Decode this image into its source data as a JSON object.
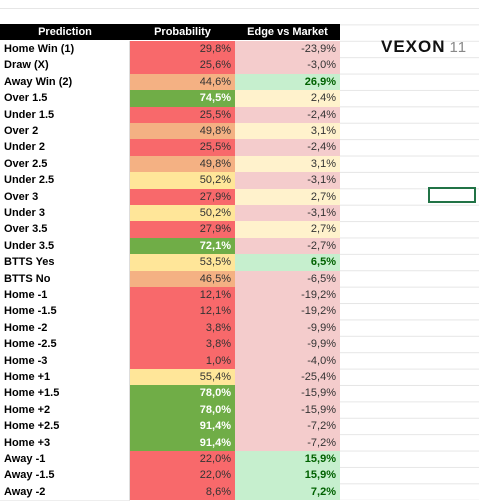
{
  "table": {
    "header": [
      "Prediction",
      "Probability",
      "Edge vs Market"
    ],
    "rows": [
      [
        "Home Win (1)",
        "29,8%",
        "-23,9%"
      ],
      [
        "Draw (X)",
        "25,6%",
        "-3,0%"
      ],
      [
        "Away Win (2)",
        "44,6%",
        "26,9%"
      ],
      [
        "Over 1.5",
        "74,5%",
        "2,4%"
      ],
      [
        "Under 1.5",
        "25,5%",
        "-2,4%"
      ],
      [
        "Over 2",
        "49,8%",
        "3,1%"
      ],
      [
        "Under 2",
        "25,5%",
        "-2,4%"
      ],
      [
        "Over 2.5",
        "49,8%",
        "3,1%"
      ],
      [
        "Under 2.5",
        "50,2%",
        "-3,1%"
      ],
      [
        "Over 3",
        "27,9%",
        "2,7%"
      ],
      [
        "Under 3",
        "50,2%",
        "-3,1%"
      ],
      [
        "Over 3.5",
        "27,9%",
        "2,7%"
      ],
      [
        "Under 3.5",
        "72,1%",
        "-2,7%"
      ],
      [
        "BTTS Yes",
        "53,5%",
        "6,5%"
      ],
      [
        "BTTS No",
        "46,5%",
        "-6,5%"
      ],
      [
        "Home -1",
        "12,1%",
        "-19,2%"
      ],
      [
        "Home -1.5",
        "12,1%",
        "-19,2%"
      ],
      [
        "Home -2",
        "3,8%",
        "-9,9%"
      ],
      [
        "Home -2.5",
        "3,8%",
        "-9,9%"
      ],
      [
        "Home -3",
        "1,0%",
        "-4,0%"
      ],
      [
        "Home +1",
        "55,4%",
        "-25,4%"
      ],
      [
        "Home +1.5",
        "78,0%",
        "-15,9%"
      ],
      [
        "Home +2",
        "78,0%",
        "-15,9%"
      ],
      [
        "Home +2.5",
        "91,4%",
        "-7,2%"
      ],
      [
        "Home +3",
        "91,4%",
        "-7,2%"
      ],
      [
        "Away -1",
        "22,0%",
        "15,9%"
      ],
      [
        "Away -1.5",
        "22,0%",
        "15,9%"
      ],
      [
        "Away -2",
        "8,6%",
        "7,2%"
      ]
    ],
    "probability_fill": [
      "#f8696b",
      "#f8696b",
      "#f4b183",
      "#70ad47",
      "#f8696b",
      "#f4b183",
      "#f8696b",
      "#f4b183",
      "#ffe699",
      "#f8696b",
      "#ffe699",
      "#f8696b",
      "#70ad47",
      "#ffe699",
      "#f4b183",
      "#f8696b",
      "#f8696b",
      "#f8696b",
      "#f8696b",
      "#f8696b",
      "#ffe699",
      "#70ad47",
      "#70ad47",
      "#70ad47",
      "#70ad47",
      "#f8696b",
      "#f8696b",
      "#f8696b"
    ],
    "edge_fill": [
      "#f4cccc",
      "#f4cccc",
      "#c6efce",
      "#fff2cc",
      "#f4cccc",
      "#fff2cc",
      "#f4cccc",
      "#fff2cc",
      "#f4cccc",
      "#fff2cc",
      "#f4cccc",
      "#fff2cc",
      "#f4cccc",
      "#c6efce",
      "#f4cccc",
      "#f4cccc",
      "#f4cccc",
      "#f4cccc",
      "#f4cccc",
      "#f4cccc",
      "#f4cccc",
      "#f4cccc",
      "#f4cccc",
      "#f4cccc",
      "#f4cccc",
      "#c6efce",
      "#c6efce",
      "#c6efce"
    ]
  },
  "logo": {
    "name": "VEXON",
    "number": "11"
  }
}
